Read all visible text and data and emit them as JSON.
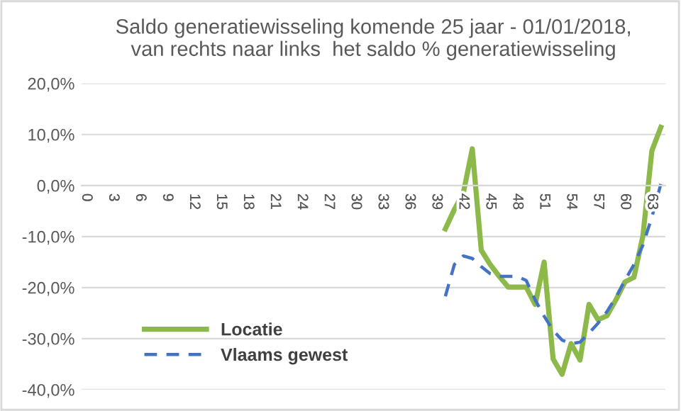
{
  "chart_data": {
    "type": "line",
    "title": "Saldo generatiewisseling komende 25 jaar - 01/01/2018,\nvan rechts naar links  het saldo % generatiewisseling",
    "categories": [
      "0",
      null,
      null,
      "3",
      null,
      null,
      "6",
      null,
      null,
      "9",
      null,
      null,
      "12",
      null,
      null,
      "15",
      null,
      null,
      "18",
      null,
      null,
      "21",
      null,
      null,
      "24",
      null,
      null,
      "27",
      null,
      null,
      "30",
      null,
      null,
      "33",
      null,
      null,
      "36",
      null,
      null,
      "39",
      null,
      null,
      "42",
      null,
      null,
      "45",
      null,
      null,
      "48",
      null,
      null,
      "51",
      null,
      null,
      "54",
      null,
      null,
      "57",
      null,
      null,
      "60",
      null,
      null,
      "63",
      null
    ],
    "series": [
      {
        "name": "Locatie",
        "color": "#8cb94a",
        "line_style": "solid",
        "values": [
          null,
          null,
          null,
          null,
          null,
          null,
          null,
          null,
          null,
          null,
          null,
          null,
          null,
          null,
          null,
          null,
          null,
          null,
          null,
          null,
          null,
          null,
          null,
          null,
          null,
          null,
          null,
          null,
          null,
          null,
          null,
          null,
          null,
          null,
          null,
          null,
          null,
          null,
          null,
          null,
          -8.5,
          -4.7,
          -1.5,
          7.2,
          -12.7,
          -15.5,
          -17.8,
          -19.9,
          -19.9,
          -19.9,
          -23.3,
          -15,
          -34,
          -37,
          -31,
          -34.2,
          -23.3,
          -26.3,
          -25.5,
          -22.4,
          -18.9,
          -18,
          -9.9,
          6.8,
          11.4
        ]
      },
      {
        "name": "Vlaams gewest",
        "color": "#4472c4",
        "line_style": "dashed",
        "values": [
          null,
          null,
          null,
          null,
          null,
          null,
          null,
          null,
          null,
          null,
          null,
          null,
          null,
          null,
          null,
          null,
          null,
          null,
          null,
          null,
          null,
          null,
          null,
          null,
          null,
          null,
          null,
          null,
          null,
          null,
          null,
          null,
          null,
          null,
          null,
          null,
          null,
          null,
          null,
          null,
          -21.7,
          -15.5,
          -13.8,
          -14.3,
          -15.9,
          -17.3,
          -17.8,
          -17.8,
          -17.8,
          -18.6,
          -22.4,
          -25.6,
          -28.4,
          -30.3,
          -31,
          -30.7,
          -28.9,
          -27,
          -24.7,
          -21.9,
          -18.6,
          -15.5,
          -11.7,
          -6.2,
          0.3
        ]
      }
    ],
    "ylim": [
      -40,
      20
    ],
    "yticks": [
      {
        "value": 20,
        "label": "20,0%"
      },
      {
        "value": 10,
        "label": "10,0%"
      },
      {
        "value": 0,
        "label": "0,0%"
      },
      {
        "value": -10,
        "label": "-10,0%"
      },
      {
        "value": -20,
        "label": "-20,0%"
      },
      {
        "value": -30,
        "label": "-30,0%"
      },
      {
        "value": -40,
        "label": "-40,0%"
      }
    ],
    "grid": "y",
    "legend": "bottom left",
    "marker": "none"
  }
}
